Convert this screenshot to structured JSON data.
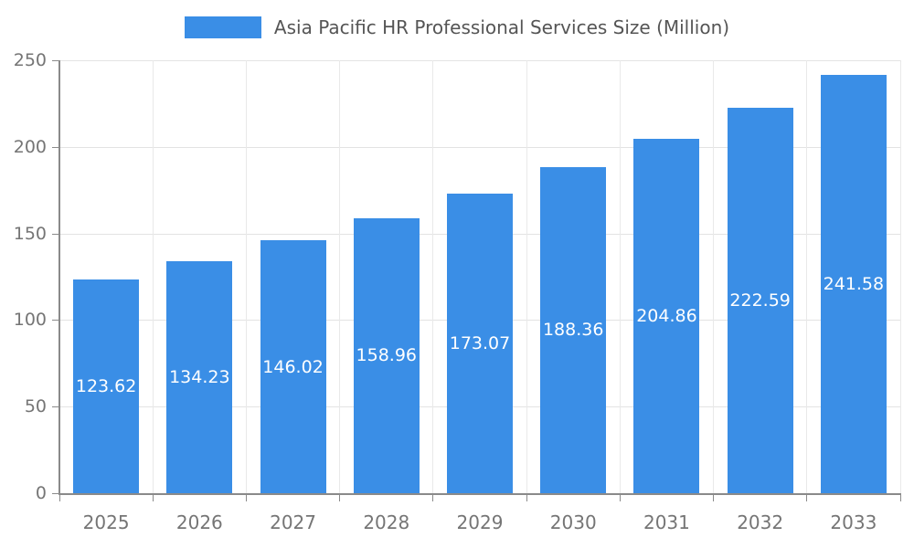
{
  "chart_data": {
    "type": "bar",
    "title": "Asia Pacific HR Professional Services Size (Million)",
    "categories": [
      "2025",
      "2026",
      "2027",
      "2028",
      "2029",
      "2030",
      "2031",
      "2032",
      "2033"
    ],
    "values": [
      123.62,
      134.23,
      146.02,
      158.96,
      173.07,
      188.36,
      204.86,
      222.59,
      241.58
    ],
    "xlabel": "",
    "ylabel": "",
    "ylim": [
      0,
      250
    ],
    "yticks": [
      0,
      50,
      100,
      150,
      200,
      250
    ],
    "grid": true,
    "legend_position": "top",
    "bar_color": "#3a8ee6",
    "value_label_color": "#ffffff",
    "axis_color": "#8a8a8a",
    "tick_label_color": "#757575"
  },
  "legend": {
    "label": "Asia Pacific HR Professional Services Size (Million)"
  }
}
